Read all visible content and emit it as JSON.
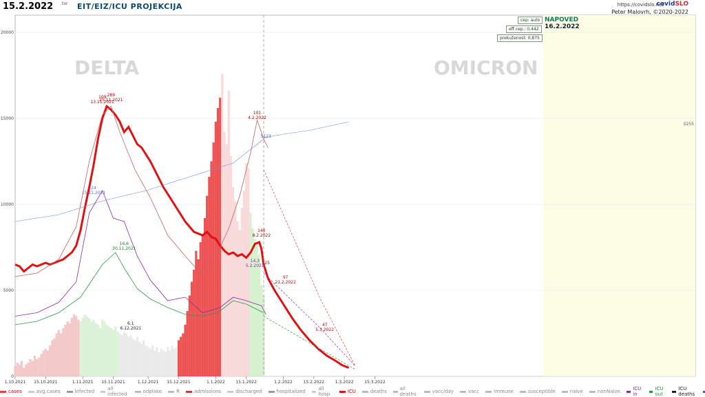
{
  "header": {
    "date": "15.2.2022",
    "tor": "tor",
    "title": "EIT/EIZ/ICU PROJEKCIJA",
    "url": "https://covidslo.net",
    "brand_a": "covid",
    "brand_b": "SLO",
    "author": "Peter Malovrh, ©2020-2022"
  },
  "info_boxes": {
    "cep": "cep: auto",
    "eff_cep": "eff.cep.: 0,442",
    "prekuzenost": "prekuženost: 0,875"
  },
  "forecast": {
    "label": "NAPOVED",
    "date": "16.2.2022"
  },
  "variants": {
    "delta": "DELTA",
    "omicron": "OMICRON"
  },
  "chart_data": {
    "type": "bar",
    "y_ticks": [
      "0",
      "5000",
      "10000",
      "15000",
      "20000"
    ],
    "ylim": [
      0,
      21000
    ],
    "x_ticks": [
      "1.10.2021",
      "15.10.2021",
      "1.11.2021",
      "15.11.2021",
      "1.12.2021",
      "15.12.2021",
      "1.1.2022",
      "15.1.2022",
      "1.2.2022",
      "15.2.2022",
      "1.3.2022",
      "15.3.2022"
    ],
    "icu_peak_label": {
      "value": "289",
      "date": "25.11.2021"
    },
    "hosp_peak_label": {
      "value": "109",
      "date": "13.11.2021"
    },
    "feb_peak_label": {
      "value": "101",
      "date": "4.2.2022"
    },
    "icu_feb_label": {
      "value": "146",
      "date": "8.2.2022"
    },
    "icu_mid_label": {
      "value": "14,3",
      "date": "5.2.2022"
    },
    "forecast_labels": [
      {
        "value": "97",
        "date": "21.2.2022"
      },
      {
        "value": "47",
        "date": "5.3.2022"
      }
    ],
    "green_labels": [
      {
        "value": "16,6",
        "date": "30.11.2021"
      },
      {
        "value": "6,1",
        "date": "6.12.2021"
      }
    ],
    "purple_label": {
      "value": "24",
      "date": "15.11.2021"
    },
    "susceptible_label": "5255",
    "susceptible_sub": "5123",
    "icu_last": "125",
    "icu_curve": [
      [
        0,
        6500
      ],
      [
        4,
        6400
      ],
      [
        8,
        6100
      ],
      [
        12,
        6300
      ],
      [
        16,
        6500
      ],
      [
        20,
        6400
      ],
      [
        24,
        6500
      ],
      [
        28,
        6600
      ],
      [
        32,
        6500
      ],
      [
        36,
        6600
      ],
      [
        40,
        6700
      ],
      [
        44,
        6800
      ],
      [
        48,
        7000
      ],
      [
        52,
        7200
      ],
      [
        56,
        7600
      ],
      [
        60,
        8500
      ],
      [
        64,
        9800
      ],
      [
        68,
        11000
      ],
      [
        72,
        12300
      ],
      [
        76,
        13800
      ],
      [
        80,
        15000
      ],
      [
        84,
        15700
      ],
      [
        88,
        15500
      ],
      [
        92,
        15200
      ],
      [
        96,
        14800
      ],
      [
        100,
        14200
      ],
      [
        104,
        14500
      ],
      [
        108,
        14000
      ],
      [
        112,
        13500
      ],
      [
        116,
        13300
      ],
      [
        120,
        12900
      ],
      [
        124,
        12500
      ],
      [
        128,
        12000
      ],
      [
        132,
        11500
      ],
      [
        136,
        11000
      ],
      [
        140,
        10600
      ],
      [
        144,
        10200
      ],
      [
        148,
        9800
      ],
      [
        152,
        9400
      ],
      [
        156,
        9000
      ],
      [
        160,
        8700
      ],
      [
        164,
        8400
      ],
      [
        168,
        8300
      ],
      [
        172,
        8200
      ],
      [
        176,
        8400
      ],
      [
        180,
        8100
      ],
      [
        184,
        8000
      ],
      [
        188,
        7600
      ],
      [
        192,
        7300
      ],
      [
        196,
        7100
      ],
      [
        200,
        7200
      ],
      [
        204,
        7000
      ],
      [
        208,
        7100
      ],
      [
        212,
        6900
      ],
      [
        216,
        7200
      ],
      [
        220,
        7700
      ],
      [
        224,
        7800
      ],
      [
        226,
        7400
      ],
      [
        228,
        6500
      ],
      [
        232,
        5700
      ],
      [
        238,
        5000
      ],
      [
        246,
        4200
      ],
      [
        254,
        3400
      ],
      [
        262,
        2700
      ],
      [
        270,
        2100
      ],
      [
        278,
        1600
      ],
      [
        286,
        1200
      ],
      [
        294,
        900
      ],
      [
        300,
        650
      ],
      [
        306,
        500
      ]
    ],
    "cases_bars": [
      [
        0,
        600
      ],
      [
        2,
        800
      ],
      [
        4,
        700
      ],
      [
        6,
        900
      ],
      [
        8,
        500
      ],
      [
        10,
        700
      ],
      [
        12,
        800
      ],
      [
        14,
        1000
      ],
      [
        16,
        900
      ],
      [
        18,
        1200
      ],
      [
        20,
        1000
      ],
      [
        22,
        1100
      ],
      [
        24,
        1300
      ],
      [
        26,
        1500
      ],
      [
        28,
        1600
      ],
      [
        30,
        1500
      ],
      [
        32,
        1800
      ],
      [
        34,
        2100
      ],
      [
        36,
        2200
      ],
      [
        38,
        2500
      ],
      [
        40,
        2700
      ],
      [
        42,
        2500
      ],
      [
        44,
        2800
      ],
      [
        46,
        3000
      ],
      [
        48,
        3200
      ],
      [
        50,
        3100
      ],
      [
        52,
        3400
      ],
      [
        54,
        3600
      ],
      [
        56,
        3500
      ],
      [
        58,
        3300
      ],
      [
        60,
        3200
      ],
      [
        62,
        3400
      ],
      [
        64,
        3600
      ],
      [
        66,
        3500
      ],
      [
        68,
        3400
      ],
      [
        70,
        3200
      ],
      [
        72,
        3300
      ],
      [
        74,
        3100
      ],
      [
        76,
        3000
      ],
      [
        78,
        2800
      ],
      [
        80,
        3300
      ],
      [
        82,
        3200
      ],
      [
        84,
        3000
      ],
      [
        86,
        2900
      ],
      [
        88,
        2800
      ],
      [
        90,
        2700
      ],
      [
        92,
        2900
      ],
      [
        94,
        2600
      ],
      [
        96,
        2500
      ],
      [
        98,
        2400
      ],
      [
        100,
        2600
      ],
      [
        102,
        2500
      ],
      [
        104,
        2300
      ],
      [
        106,
        2400
      ],
      [
        108,
        2200
      ],
      [
        110,
        2100
      ],
      [
        112,
        2300
      ],
      [
        114,
        2000
      ],
      [
        116,
        1900
      ],
      [
        118,
        2100
      ],
      [
        120,
        1800
      ],
      [
        122,
        1700
      ],
      [
        124,
        1600
      ],
      [
        126,
        1800
      ],
      [
        128,
        1500
      ],
      [
        130,
        1700
      ],
      [
        132,
        1400
      ],
      [
        134,
        1600
      ],
      [
        136,
        1500
      ],
      [
        138,
        1400
      ],
      [
        140,
        1700
      ],
      [
        142,
        1500
      ],
      [
        144,
        1800
      ],
      [
        146,
        1600
      ],
      [
        148,
        1700
      ],
      [
        150,
        2100
      ],
      [
        152,
        2300
      ],
      [
        154,
        2500
      ],
      [
        156,
        3000
      ],
      [
        158,
        3800
      ],
      [
        160,
        4700
      ],
      [
        162,
        5500
      ],
      [
        164,
        6200
      ],
      [
        166,
        7300
      ],
      [
        168,
        6800
      ],
      [
        170,
        7800
      ],
      [
        172,
        8200
      ],
      [
        174,
        9200
      ],
      [
        176,
        10500
      ],
      [
        178,
        11600
      ],
      [
        180,
        12500
      ],
      [
        182,
        13600
      ],
      [
        184,
        14800
      ],
      [
        186,
        15600
      ],
      [
        188,
        16200
      ],
      [
        190,
        17600
      ],
      [
        192,
        14200
      ],
      [
        194,
        13500
      ],
      [
        196,
        16600
      ],
      [
        198,
        12800
      ],
      [
        200,
        11000
      ],
      [
        202,
        10200
      ],
      [
        204,
        9000
      ],
      [
        206,
        8500
      ],
      [
        208,
        9800
      ],
      [
        210,
        10800
      ],
      [
        212,
        12400
      ],
      [
        214,
        12100
      ],
      [
        216,
        9500
      ],
      [
        218,
        8600
      ],
      [
        220,
        8000
      ],
      [
        222,
        7600
      ],
      [
        224,
        7100
      ],
      [
        226,
        5300
      ],
      [
        228,
        4700
      ]
    ]
  },
  "legend": [
    {
      "label": "cases",
      "color": "#e84040"
    },
    {
      "label": "avg.cases",
      "color": "#cccccc"
    },
    {
      "label": "infected",
      "color": "#999999"
    },
    {
      "label": "all infected",
      "color": "#cccccc"
    },
    {
      "label": "odplake",
      "color": "#bbbbbb"
    },
    {
      "label": "R",
      "color": "#bbbbbb"
    },
    {
      "label": "admissions",
      "color": "#c04040"
    },
    {
      "label": "discharged",
      "color": "#cccccc"
    },
    {
      "label": "hospitalized",
      "color": "#999999"
    },
    {
      "label": "all hosp.",
      "color": "#cccccc"
    },
    {
      "label": "ICU",
      "color": "#e01010"
    },
    {
      "label": "deaths",
      "color": "#bbbbbb"
    },
    {
      "label": "all deaths",
      "color": "#bbbbbb"
    },
    {
      "label": "vacc/day",
      "color": "#bbbbbb"
    },
    {
      "label": "vacc",
      "color": "#bbbbbb"
    },
    {
      "label": "immune",
      "color": "#bbbbbb"
    },
    {
      "label": "susceptible",
      "color": "#bbbbbb"
    },
    {
      "label": "naive",
      "color": "#bbbbbb"
    },
    {
      "label": "nonNaive",
      "color": "#bbbbbb"
    },
    {
      "label": "ICU in",
      "color": "#8a2aa0"
    },
    {
      "label": "ICU out",
      "color": "#1a9a3a"
    },
    {
      "label": "ICU deaths",
      "color": "#222222"
    },
    {
      "label": "all ICU",
      "color": "#3a5ad0"
    }
  ]
}
